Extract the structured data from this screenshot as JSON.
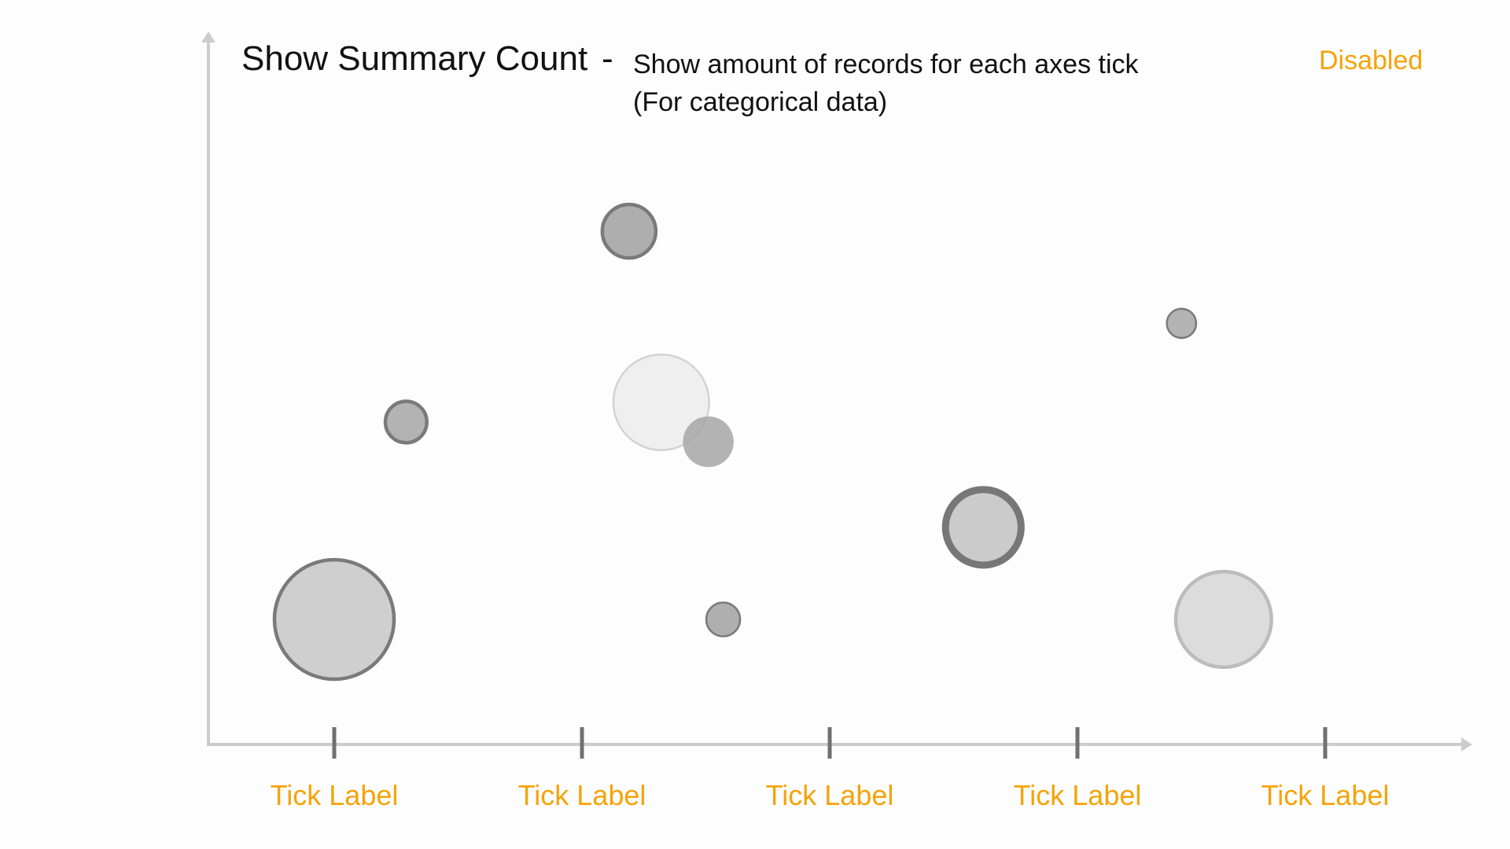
{
  "header": {
    "title": "Show Summary Count",
    "separator": "-",
    "subtitle_line1": "Show amount of records for each axes tick",
    "subtitle_line2": "(For categorical data)"
  },
  "status": {
    "label": "Disabled",
    "color": "#f5a30a"
  },
  "colors": {
    "axis": "#cccccc",
    "tick_mark": "#707070",
    "tick_label": "#f5a30a",
    "title": "#111111"
  },
  "chart_data": {
    "type": "scatter",
    "title": "Show Summary Count",
    "subtitle": "Show amount of records for each axes tick (For categorical data)",
    "xlabel": "",
    "ylabel": "",
    "categories": [
      "Tick Label",
      "Tick Label",
      "Tick Label",
      "Tick Label",
      "Tick Label"
    ],
    "x_range": [
      -0.5,
      4.6
    ],
    "y_range": [
      0,
      100
    ],
    "grid": false,
    "legend": "none",
    "points": [
      {
        "x": 0.0,
        "y": 19,
        "size": 5,
        "fill": "#cfcfcf",
        "stroke": "#7a7a7a",
        "stroke_level": "medium",
        "opacity": 1
      },
      {
        "x": 0.29,
        "y": 49,
        "size": 0.6,
        "fill": "#b3b3b3",
        "stroke": "#7a7a7a",
        "stroke_level": "medium",
        "opacity": 1
      },
      {
        "x": 1.19,
        "y": 78,
        "size": 1.0,
        "fill": "#aeaeae",
        "stroke": "#7a7a7a",
        "stroke_level": "medium",
        "opacity": 1
      },
      {
        "x": 1.32,
        "y": 52,
        "size": 3.2,
        "fill": "#efefef",
        "stroke": "#d3d3d3",
        "stroke_level": "thin",
        "opacity": 1
      },
      {
        "x": 1.51,
        "y": 46,
        "size": 0.9,
        "fill": "#a6a6a6",
        "stroke": "none",
        "stroke_level": "none",
        "opacity": 0.85
      },
      {
        "x": 1.57,
        "y": 19,
        "size": 0.4,
        "fill": "#afafaf",
        "stroke": "#7a7a7a",
        "stroke_level": "thin",
        "opacity": 1
      },
      {
        "x": 2.62,
        "y": 33,
        "size": 2.0,
        "fill": "#cbcbcb",
        "stroke": "#777777",
        "stroke_level": "thick",
        "opacity": 1
      },
      {
        "x": 3.42,
        "y": 64,
        "size": 0.3,
        "fill": "#b3b3b3",
        "stroke": "#7a7a7a",
        "stroke_level": "thin",
        "opacity": 1
      },
      {
        "x": 3.59,
        "y": 19,
        "size": 3.2,
        "fill": "#dcdcdc",
        "stroke": "#bcbcbc",
        "stroke_level": "medium",
        "opacity": 1
      }
    ]
  }
}
